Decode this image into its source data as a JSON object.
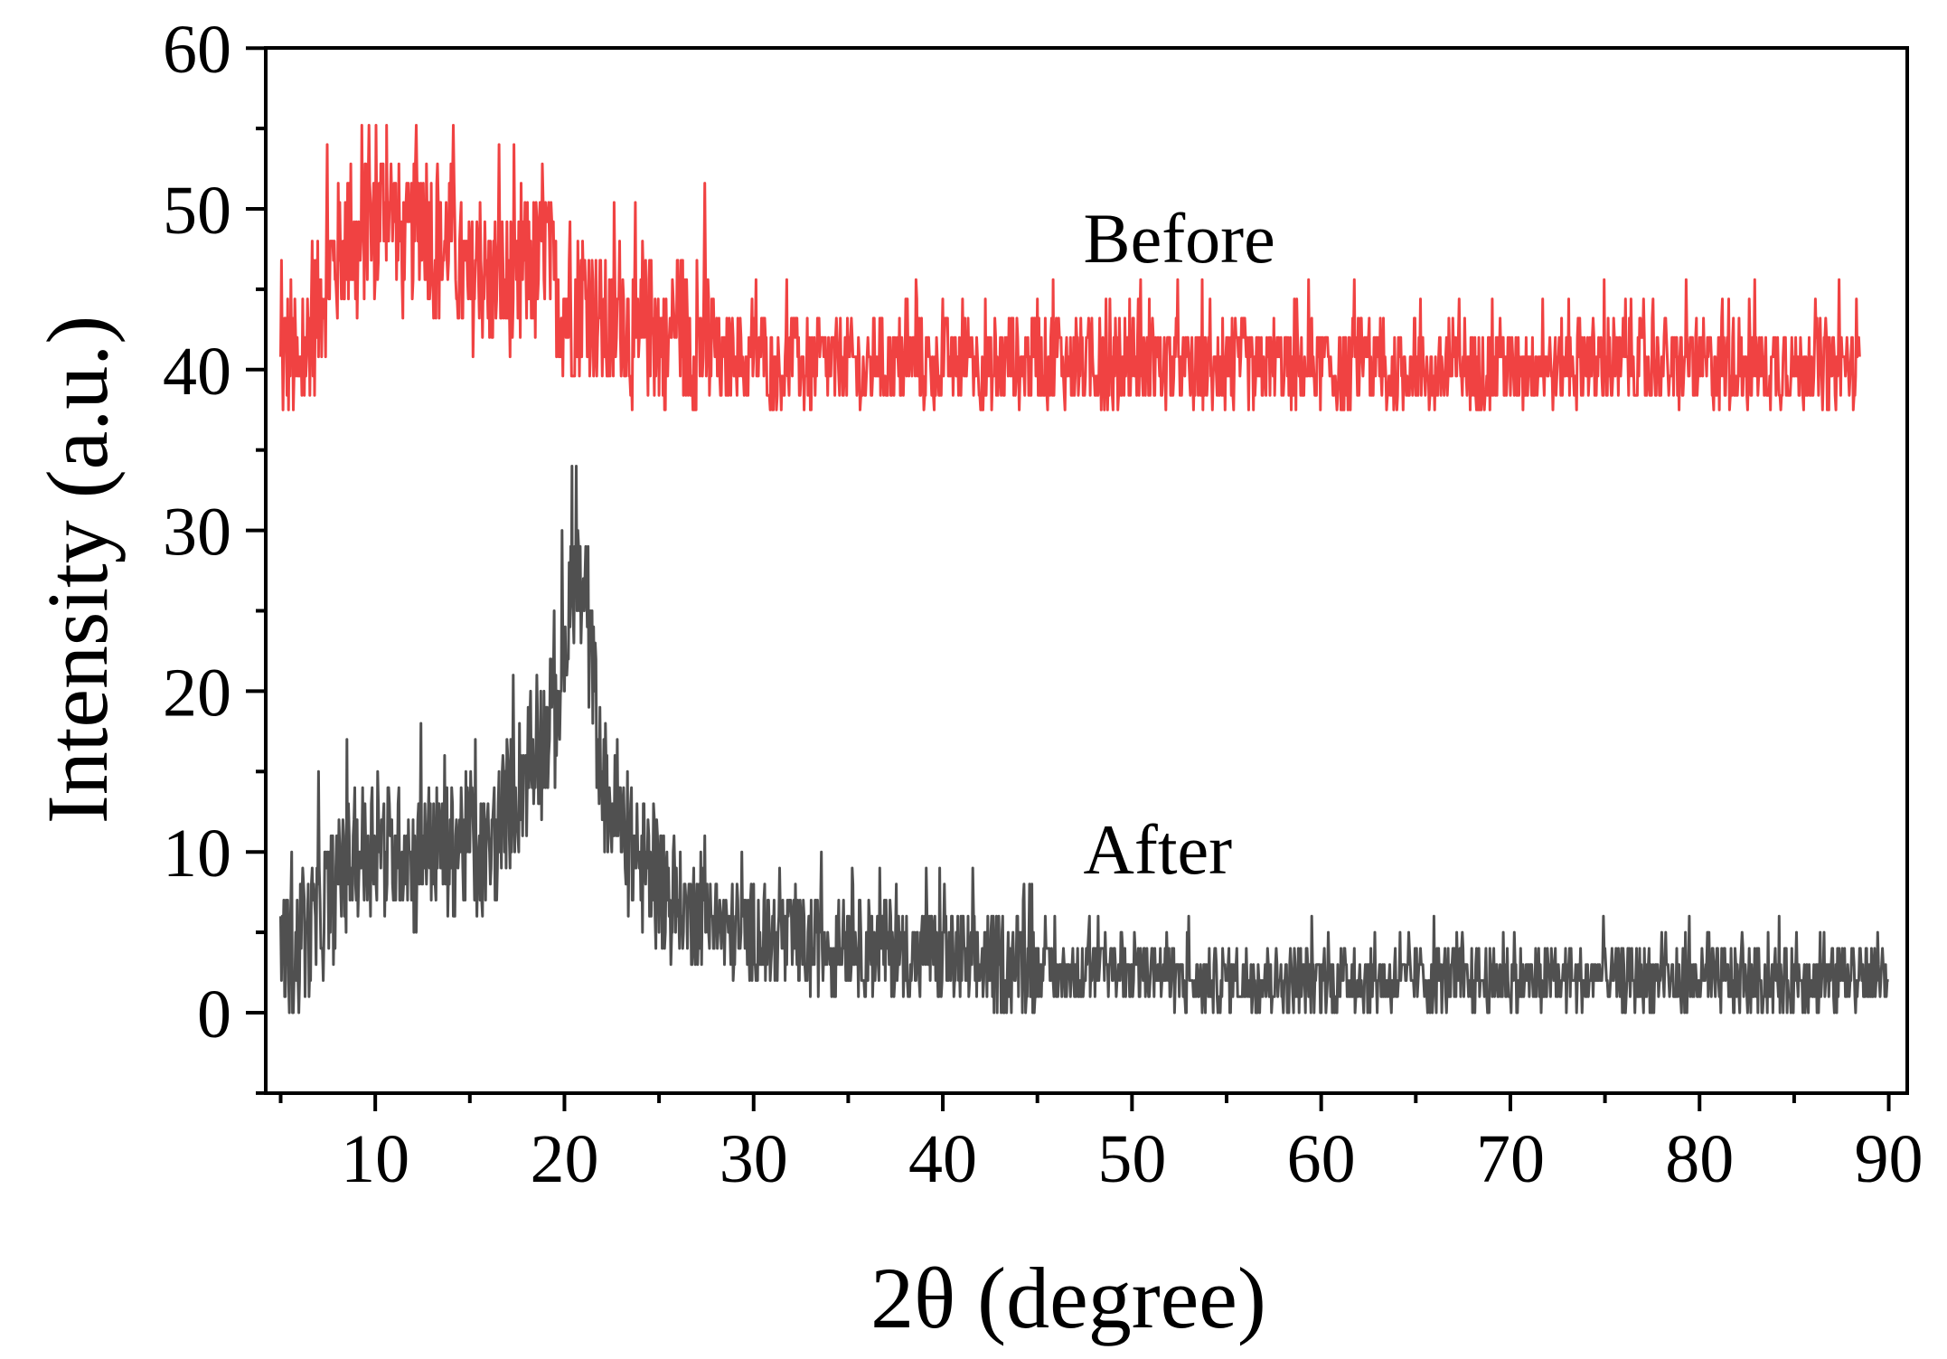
{
  "chart_data": {
    "type": "line",
    "title": "",
    "xlabel": "2θ (degree)",
    "ylabel": "Intensity (a.u.)",
    "xlim": [
      4.2,
      90.9
    ],
    "ylim": [
      -5,
      60
    ],
    "grid": false,
    "legend": null,
    "x_ticks": [
      10,
      20,
      30,
      40,
      50,
      60,
      70,
      80,
      90
    ],
    "x_tick_labels": [
      "10",
      "20",
      "30",
      "40",
      "50",
      "60",
      "70",
      "80",
      "90"
    ],
    "x_minor_ticks": [
      5,
      15,
      25,
      35,
      45,
      55,
      65,
      75,
      85
    ],
    "y_ticks": [
      0,
      10,
      20,
      30,
      40,
      50,
      60
    ],
    "y_tick_labels": [
      "0",
      "10",
      "20",
      "30",
      "40",
      "50",
      "60"
    ],
    "y_minor_ticks": [
      -5,
      5,
      15,
      25,
      35,
      45,
      55
    ],
    "annotations": [
      {
        "text": "Before",
        "x": 47,
        "y": 46.5
      },
      {
        "text": "After",
        "x": 47,
        "y": 8.5
      }
    ],
    "x": [
      5,
      5.5,
      6,
      6.5,
      7,
      7.5,
      8,
      8.5,
      9,
      9.5,
      10,
      10.5,
      11,
      11.5,
      12,
      12.5,
      13,
      13.5,
      14,
      14.5,
      15,
      15.5,
      16,
      16.5,
      17,
      17.5,
      18,
      18.5,
      19,
      19.5,
      20,
      20.5,
      21,
      21.5,
      22,
      22.5,
      23,
      23.5,
      24,
      24.5,
      25,
      25.5,
      26,
      26.5,
      27,
      27.5,
      28,
      28.5,
      29,
      29.5,
      30,
      30.5,
      31,
      31.5,
      32,
      32.5,
      33,
      33.5,
      34,
      34.5,
      35,
      35.5,
      36,
      36.5,
      37,
      37.5,
      38,
      38.5,
      39,
      39.5,
      40,
      40.5,
      41,
      41.5,
      42,
      42.5,
      43,
      43.5,
      44,
      44.5,
      45,
      45.5,
      46,
      46.5,
      47,
      47.5,
      48,
      48.5,
      49,
      49.5,
      50,
      50.5,
      51,
      51.5,
      52,
      52.5,
      53,
      53.5,
      54,
      54.5,
      55,
      55.5,
      56,
      56.5,
      57,
      57.5,
      58,
      58.5,
      59,
      59.5,
      60,
      60.5,
      61,
      61.5,
      62,
      62.5,
      63,
      63.5,
      64,
      64.5,
      65,
      65.5,
      66,
      66.5,
      67,
      67.5,
      68,
      68.5,
      69,
      69.5,
      70,
      70.5,
      71,
      71.5,
      72,
      72.5,
      73,
      73.5,
      74,
      74.5,
      75,
      75.5,
      76,
      76.5,
      77,
      77.5,
      78,
      78.5,
      79,
      79.5,
      80,
      80.5,
      81,
      81.5,
      82,
      82.5,
      83,
      83.5,
      84,
      84.5,
      85,
      85.5,
      86,
      86.5,
      87,
      87.5,
      88,
      88.5,
      89,
      89.5,
      90
    ],
    "series": [
      {
        "name": "Before",
        "color": "#F04242",
        "values": [
          40,
          41.5,
          39,
          42,
          44,
          46,
          47,
          48,
          46.5,
          49,
          48,
          51,
          49,
          47,
          48.5,
          50,
          48,
          47,
          49,
          46,
          45,
          47,
          44.5,
          46,
          45,
          44,
          47,
          46,
          48,
          45,
          44,
          43.5,
          45,
          44,
          43,
          42,
          44,
          42,
          41,
          43,
          42,
          41,
          44,
          41.5,
          41,
          42,
          41,
          40,
          41.5,
          40,
          40.5,
          41,
          39.5,
          40,
          41,
          40,
          39.5,
          41,
          40,
          40.5,
          41,
          40,
          39.5,
          41,
          40,
          40.5,
          40,
          41,
          40,
          39.5,
          41,
          40,
          40.5,
          41,
          40,
          39.5,
          40,
          41,
          40,
          40.5,
          41,
          40,
          41.5,
          40,
          41,
          40,
          40.5,
          40,
          39.5,
          40,
          41,
          40,
          40.5,
          40,
          40,
          40.5,
          39.5,
          40,
          40,
          39.5,
          40,
          40,
          40.5,
          39.5,
          40,
          40.5,
          40,
          39.5,
          40,
          40.5,
          40,
          40,
          39.5,
          40,
          40.5,
          40,
          40,
          39.5,
          40,
          40,
          40.5,
          40,
          39.5,
          40,
          40,
          40.5,
          40,
          40,
          40,
          40.5,
          39.5,
          40,
          40,
          40.5,
          40,
          40,
          40.5,
          40,
          41,
          40,
          40.5,
          40,
          40,
          40.5,
          40,
          40,
          40.5,
          40,
          40,
          40.5,
          40,
          40.5,
          40,
          40,
          40.5,
          40,
          40.5,
          40,
          40,
          40.5,
          40,
          40,
          40.5,
          40,
          40,
          40.5,
          40,
          40
        ]
      },
      {
        "name": "After",
        "color": "#505050",
        "values": [
          4,
          3,
          4,
          5,
          6,
          7,
          8,
          9,
          10,
          10,
          11,
          10,
          10,
          11,
          9,
          10,
          11,
          10,
          10,
          11,
          10,
          9,
          10,
          11,
          13,
          14,
          15,
          16,
          17,
          18,
          22,
          27,
          25,
          21,
          14,
          13,
          11,
          10,
          9,
          9,
          8,
          7,
          7,
          6,
          6,
          6,
          6,
          5,
          5,
          5,
          5,
          4.5,
          4.5,
          4,
          4.5,
          4,
          4,
          4.5,
          4,
          4,
          4.5,
          4,
          4,
          4,
          4,
          4,
          3.5,
          3.5,
          3.5,
          3.5,
          3.5,
          3.5,
          3,
          3,
          3,
          3,
          3,
          3,
          3,
          3,
          3,
          2.5,
          2.5,
          2.5,
          2.5,
          2.5,
          2.5,
          2.5,
          2.5,
          2.5,
          2.5,
          2.5,
          2.5,
          2.5,
          2,
          2,
          2,
          2,
          2,
          2,
          2,
          2,
          2,
          2,
          2,
          2,
          2,
          2,
          2,
          2,
          2,
          2,
          2,
          2,
          2,
          2,
          2,
          2,
          2,
          2,
          2,
          2,
          2,
          2,
          2,
          2,
          2,
          2,
          2,
          2,
          2,
          2,
          2,
          2,
          2,
          2,
          2,
          2,
          2,
          2,
          2,
          2,
          2,
          2,
          2,
          2,
          2,
          2,
          2,
          2,
          2,
          2,
          2,
          2,
          2,
          2,
          2,
          2,
          2,
          2,
          2,
          2,
          2,
          2,
          2,
          2,
          2,
          2,
          2,
          2,
          2,
          2,
          2,
          2,
          2,
          2
        ]
      }
    ],
    "peaks": [
      {
        "series": "After",
        "x": 20.4,
        "y": 34
      },
      {
        "series": "Before",
        "x": 10.6,
        "y": 55.2
      }
    ],
    "noise": {
      "Before": {
        "step": 1.2,
        "min": 37.5,
        "max": 55.2
      },
      "After": {
        "step": 1,
        "min": 0,
        "max": 34
      }
    }
  }
}
